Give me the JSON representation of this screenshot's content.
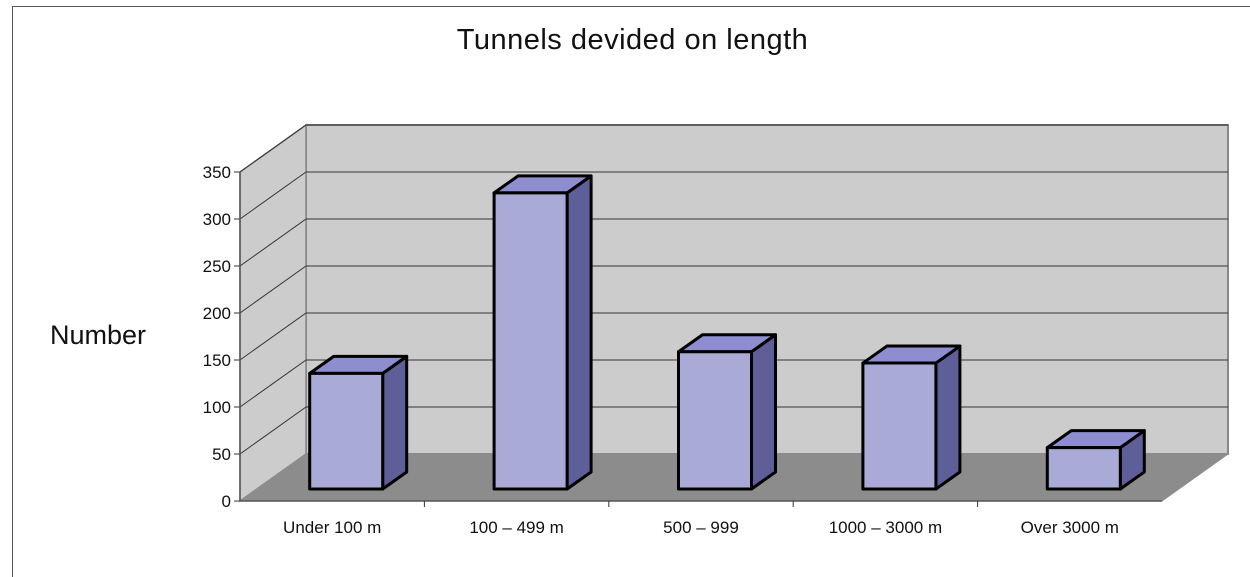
{
  "chart_data": {
    "type": "bar",
    "title": "Tunnels devided on length",
    "xlabel": "",
    "ylabel": "Number",
    "categories": [
      "Under 100 m",
      "100 – 499 m",
      "500 – 999",
      "1000 – 3000 m",
      "Over 3000 m"
    ],
    "values": [
      123,
      315,
      146,
      134,
      44
    ],
    "ylim": [
      0,
      350
    ],
    "yticks": [
      "0",
      "50",
      "100",
      "150",
      "200",
      "250",
      "300",
      "350"
    ],
    "grid": true,
    "legend": "none",
    "style": "3d-column",
    "colors": {
      "bar_front": "#aaaad6",
      "bar_top": "#8d8dd0",
      "bar_side": "#5e5e99",
      "wall": "#cccccc",
      "floor": "#8c8c8c",
      "grid": "#333333"
    }
  }
}
